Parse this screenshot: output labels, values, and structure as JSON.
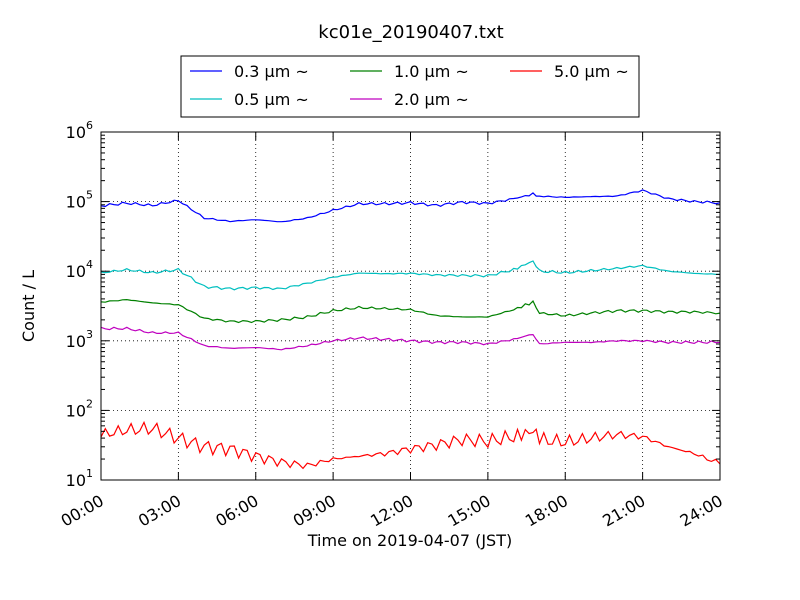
{
  "chart_data": {
    "type": "line",
    "title": "kc01e_20190407.txt",
    "xlabel": "Time on 2019-04-07 (JST)",
    "ylabel": "Count / L",
    "yscale": "log",
    "ylim": [
      10,
      1000000
    ],
    "xlim": [
      "00:00",
      "24:00"
    ],
    "x_ticks": [
      "00:00",
      "03:00",
      "06:00",
      "09:00",
      "12:00",
      "15:00",
      "18:00",
      "21:00",
      "24:00"
    ],
    "y_ticks": [
      {
        "value": 10,
        "base": "10",
        "exp": "1"
      },
      {
        "value": 100,
        "base": "10",
        "exp": "2"
      },
      {
        "value": 1000,
        "base": "10",
        "exp": "3"
      },
      {
        "value": 10000,
        "base": "10",
        "exp": "4"
      },
      {
        "value": 100000,
        "base": "10",
        "exp": "5"
      },
      {
        "value": 1000000,
        "base": "10",
        "exp": "6"
      }
    ],
    "grid": true,
    "legend_position": "top-center",
    "x": [
      "00:00",
      "01:00",
      "02:00",
      "03:00",
      "04:00",
      "05:00",
      "06:00",
      "07:00",
      "08:00",
      "09:00",
      "10:00",
      "11:00",
      "12:00",
      "13:00",
      "14:00",
      "15:00",
      "16:00",
      "16:45",
      "17:00",
      "18:00",
      "19:00",
      "20:00",
      "21:00",
      "22:00",
      "23:00",
      "24:00"
    ],
    "series": [
      {
        "name": "0.3 μm ~",
        "color": "#0000ff",
        "values": [
          87000,
          95000,
          88000,
          104000,
          58000,
          52000,
          55000,
          51000,
          58000,
          75000,
          93000,
          93000,
          96000,
          88000,
          98000,
          94000,
          110000,
          128000,
          120000,
          115000,
          118000,
          120000,
          145000,
          110000,
          100000,
          96000
        ]
      },
      {
        "name": "0.5 μm ~",
        "color": "#00bfbf",
        "values": [
          9500,
          10500,
          9500,
          10500,
          6000,
          5600,
          5800,
          5600,
          6700,
          8200,
          9400,
          9200,
          9300,
          8800,
          8700,
          8600,
          10500,
          14000,
          10000,
          9500,
          10200,
          11000,
          12000,
          10000,
          9300,
          9000
        ]
      },
      {
        "name": "1.0 μm ~",
        "color": "#008000",
        "values": [
          3600,
          3900,
          3500,
          3300,
          2100,
          1900,
          1900,
          2000,
          2200,
          2700,
          3000,
          2900,
          2800,
          2300,
          2200,
          2200,
          2800,
          3600,
          2500,
          2300,
          2500,
          2700,
          2700,
          2600,
          2600,
          2500
        ]
      },
      {
        "name": "2.0 μm ~",
        "color": "#bf00bf",
        "values": [
          1500,
          1500,
          1300,
          1300,
          850,
          780,
          800,
          750,
          850,
          1000,
          1100,
          1050,
          1000,
          950,
          950,
          900,
          1050,
          1250,
          900,
          950,
          950,
          1000,
          1000,
          950,
          950,
          950
        ]
      },
      {
        "name": "5.0 μm ~",
        "color": "#ff0000",
        "values": [
          45,
          52,
          55,
          40,
          30,
          28,
          22,
          18,
          16,
          20,
          22,
          24,
          28,
          32,
          38,
          36,
          42,
          50,
          38,
          35,
          40,
          45,
          42,
          30,
          24,
          17
        ]
      }
    ]
  }
}
